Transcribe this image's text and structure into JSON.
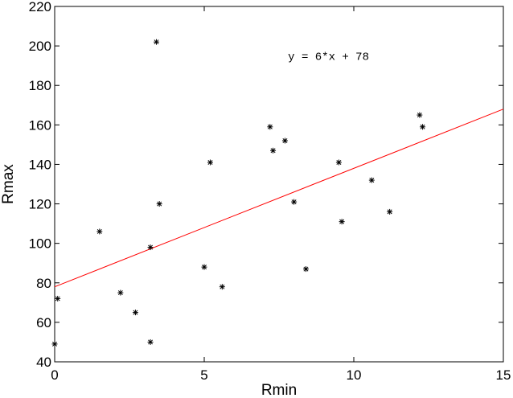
{
  "chart_data": {
    "type": "scatter",
    "title": "",
    "xlabel": "Rmin",
    "ylabel": "Rmax",
    "xlim": [
      0,
      15
    ],
    "ylim": [
      40,
      220
    ],
    "xticks": [
      0,
      5,
      10,
      15
    ],
    "yticks": [
      40,
      60,
      80,
      100,
      120,
      140,
      160,
      180,
      200,
      220
    ],
    "grid": false,
    "marker": "*",
    "points": [
      {
        "x": 0.0,
        "y": 49
      },
      {
        "x": 0.1,
        "y": 72
      },
      {
        "x": 1.5,
        "y": 106
      },
      {
        "x": 2.2,
        "y": 75
      },
      {
        "x": 2.7,
        "y": 65
      },
      {
        "x": 3.2,
        "y": 50
      },
      {
        "x": 3.2,
        "y": 98
      },
      {
        "x": 3.4,
        "y": 202
      },
      {
        "x": 3.5,
        "y": 120
      },
      {
        "x": 5.0,
        "y": 88
      },
      {
        "x": 5.2,
        "y": 141
      },
      {
        "x": 5.6,
        "y": 78
      },
      {
        "x": 7.2,
        "y": 159
      },
      {
        "x": 7.3,
        "y": 147
      },
      {
        "x": 7.7,
        "y": 152
      },
      {
        "x": 8.0,
        "y": 121
      },
      {
        "x": 8.4,
        "y": 87
      },
      {
        "x": 9.5,
        "y": 141
      },
      {
        "x": 9.6,
        "y": 111
      },
      {
        "x": 10.6,
        "y": 132
      },
      {
        "x": 11.2,
        "y": 116
      },
      {
        "x": 12.2,
        "y": 165
      },
      {
        "x": 12.3,
        "y": 159
      }
    ],
    "fit_line": {
      "slope": 6,
      "intercept": 78,
      "color": "#ff0000"
    },
    "annotation": {
      "text": "y = 6*x + 78",
      "x": 7.8,
      "y": 193
    }
  }
}
